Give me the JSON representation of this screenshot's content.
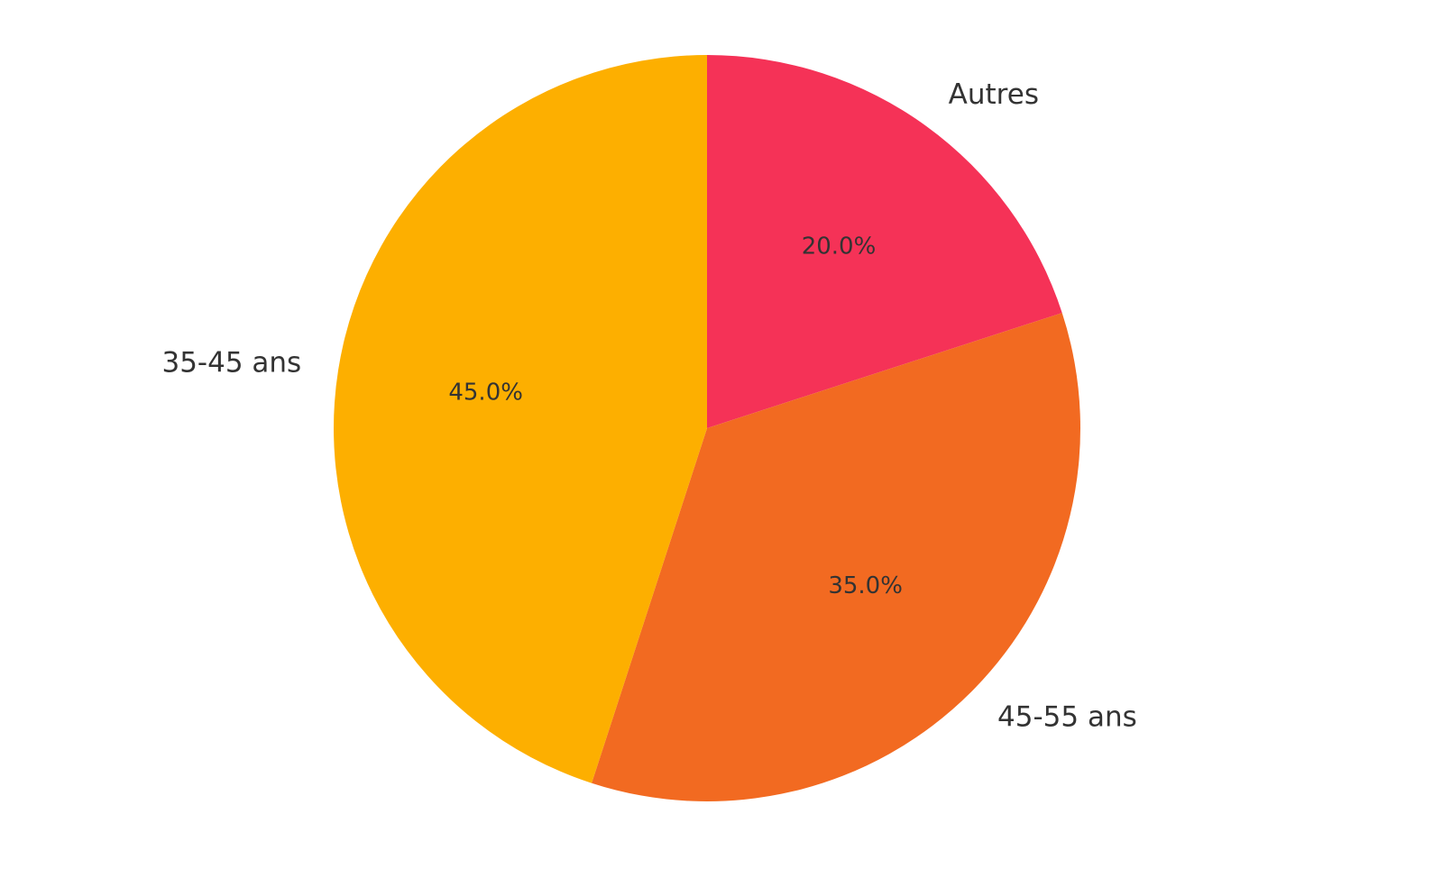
{
  "chart_data": {
    "type": "pie",
    "categories": [
      "Autres",
      "45-55 ans",
      "35-45 ans"
    ],
    "values": [
      20,
      35,
      45
    ],
    "value_labels": [
      "20.0%",
      "35.0%",
      "45.0%"
    ],
    "colors": [
      "#f53257",
      "#f26a21",
      "#fdaf00"
    ]
  }
}
